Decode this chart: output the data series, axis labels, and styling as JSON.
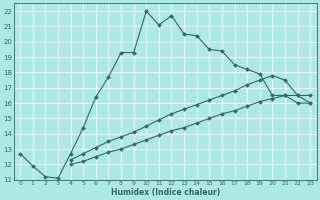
{
  "xlabel": "Humidex (Indice chaleur)",
  "bg_color": "#ace8e8",
  "line_color": "#336666",
  "grid_color": "#ffffff",
  "xlim": [
    -0.5,
    23.5
  ],
  "ylim": [
    11,
    22.5
  ],
  "yticks": [
    11,
    12,
    13,
    14,
    15,
    16,
    17,
    18,
    19,
    20,
    21,
    22
  ],
  "xticks": [
    0,
    1,
    2,
    3,
    4,
    5,
    6,
    7,
    8,
    9,
    10,
    11,
    12,
    13,
    14,
    15,
    16,
    17,
    18,
    19,
    20,
    21,
    22,
    23
  ],
  "curve1_x": [
    0,
    1,
    2,
    3,
    4,
    5,
    6,
    7,
    8,
    9,
    10,
    11,
    12,
    13,
    14,
    15,
    16,
    17,
    18,
    19,
    20,
    21,
    22,
    23
  ],
  "curve1_y": [
    12.7,
    11.9,
    11.2,
    11.1,
    12.7,
    14.4,
    16.4,
    17.7,
    19.3,
    19.3,
    22.0,
    21.1,
    21.7,
    20.5,
    20.4,
    19.5,
    19.4,
    18.5,
    18.2,
    17.9,
    16.5,
    16.5,
    16.5,
    16.0
  ],
  "curve2_x": [
    4,
    5,
    6,
    7,
    8,
    9,
    10,
    11,
    12,
    13,
    14,
    15,
    16,
    17,
    18,
    19,
    20,
    21,
    22,
    23
  ],
  "curve2_y": [
    12.0,
    12.2,
    12.5,
    12.8,
    13.0,
    13.3,
    13.6,
    13.9,
    14.2,
    14.4,
    14.7,
    15.0,
    15.3,
    15.5,
    15.8,
    16.1,
    16.3,
    16.5,
    16.0,
    16.0
  ],
  "curve3_x": [
    4,
    5,
    6,
    7,
    8,
    9,
    10,
    11,
    12,
    13,
    14,
    15,
    16,
    17,
    18,
    19,
    20,
    21,
    22,
    23
  ],
  "curve3_y": [
    12.3,
    12.7,
    13.1,
    13.5,
    13.8,
    14.1,
    14.5,
    14.9,
    15.3,
    15.6,
    15.9,
    16.2,
    16.5,
    16.8,
    17.2,
    17.5,
    17.8,
    17.5,
    16.5,
    16.5
  ]
}
